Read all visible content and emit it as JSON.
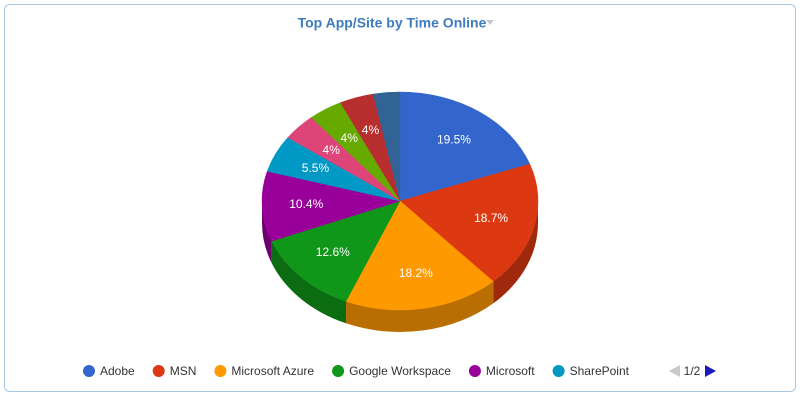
{
  "chart_data": {
    "type": "pie3d",
    "title": "Top App/Site by Time Online",
    "categories": [
      "Adobe",
      "MSN",
      "Microsoft Azure",
      "Google Workspace",
      "Microsoft",
      "SharePoint",
      null,
      null,
      null,
      null
    ],
    "values": [
      19.5,
      18.7,
      18.2,
      12.6,
      10.4,
      5.5,
      4,
      4,
      4,
      3.1
    ],
    "value_labels": [
      "19.5%",
      "18.7%",
      "18.2%",
      "12.6%",
      "10.4%",
      "5.5%",
      "4%",
      "4%",
      "4%",
      null
    ],
    "colors": [
      "#3366cc",
      "#dc3912",
      "#ff9900",
      "#109618",
      "#990099",
      "#0099c6",
      "#dd4477",
      "#66aa00",
      "#b82e2e",
      "#316395"
    ],
    "legend_page": "1/2"
  }
}
